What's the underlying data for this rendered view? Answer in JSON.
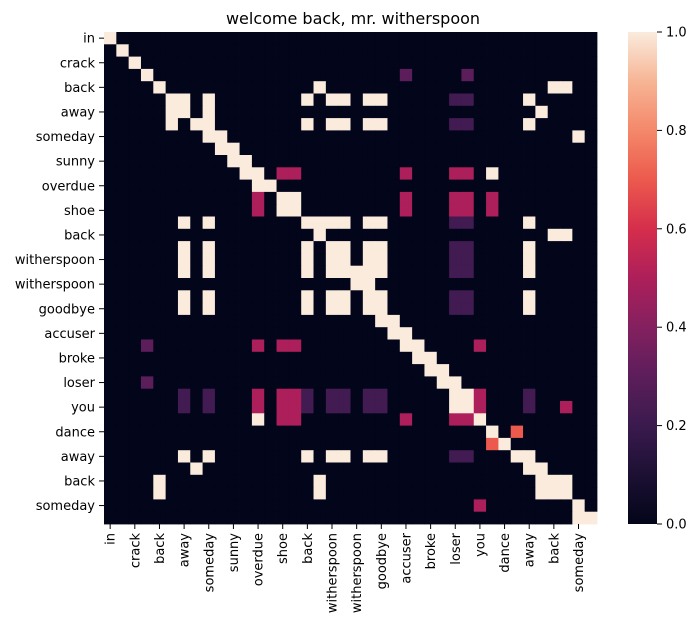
{
  "chart_data": {
    "type": "heatmap",
    "title": "welcome back, mr. witherspoon",
    "xlabel": "",
    "ylabel": "",
    "tokens": [
      "in",
      "",
      "crack",
      "",
      "back",
      "",
      "away",
      "",
      "someday",
      "",
      "sunny",
      "",
      "overdue",
      "",
      "shoe",
      "",
      "back",
      "",
      "witherspoon",
      "",
      "witherspoon",
      "",
      "goodbye",
      "",
      "accuser",
      "",
      "broke",
      "",
      "loser",
      "",
      "you",
      "",
      "dance",
      "",
      "away",
      "",
      "back",
      "",
      "someday",
      ""
    ],
    "colorbar": {
      "min": 0.0,
      "max": 1.0,
      "ticks": [
        "0.0",
        "0.2",
        "0.4",
        "0.6",
        "0.8",
        "1.0"
      ],
      "colormap": "rocket"
    },
    "matrix": [
      [
        1,
        0,
        0,
        0,
        0,
        0,
        0,
        0,
        0,
        0,
        0,
        0,
        0,
        0,
        0,
        0,
        0,
        0,
        0,
        0,
        0,
        0,
        0,
        0,
        0,
        0,
        0,
        0,
        0,
        0,
        0,
        0,
        0,
        0,
        0,
        0,
        0,
        0,
        0,
        0
      ],
      [
        0,
        1,
        0,
        0,
        0,
        0,
        0,
        0,
        0,
        0,
        0,
        0,
        0,
        0,
        0,
        0,
        0,
        0,
        0,
        0,
        0,
        0,
        0,
        0,
        0,
        0,
        0,
        0,
        0,
        0,
        0,
        0,
        0,
        0,
        0,
        0,
        0,
        0,
        0,
        0
      ],
      [
        0,
        0,
        1,
        0,
        0,
        0,
        0,
        0,
        0,
        0,
        0,
        0,
        0,
        0,
        0,
        0,
        0,
        0,
        0,
        0,
        0,
        0,
        0,
        0,
        0,
        0,
        0,
        0,
        0,
        0,
        0,
        0,
        0,
        0,
        0,
        0,
        0,
        0,
        0,
        0
      ],
      [
        0,
        0,
        0,
        1,
        0,
        0,
        0,
        0,
        0,
        0,
        0,
        0,
        0,
        0,
        0,
        0,
        0,
        0,
        0,
        0,
        0,
        0,
        0,
        0,
        0.3,
        0,
        0,
        0,
        0,
        0.3,
        0,
        0,
        0,
        0,
        0,
        0,
        0,
        0,
        0,
        0
      ],
      [
        0,
        0,
        0,
        0,
        1,
        0,
        0,
        0,
        0,
        0,
        0,
        0,
        0,
        0,
        0,
        0,
        0,
        1,
        0,
        0,
        0,
        0,
        0,
        0,
        0,
        0,
        0,
        0,
        0,
        0,
        0,
        0,
        0,
        0,
        0,
        0,
        1,
        1,
        0,
        0
      ],
      [
        0,
        0,
        0,
        0,
        0,
        1,
        1,
        0,
        1,
        0,
        0,
        0,
        0,
        0,
        0,
        0,
        1,
        0,
        1,
        1,
        0,
        1,
        1,
        0,
        0,
        0,
        0,
        0,
        0.22,
        0.22,
        0,
        0,
        0,
        0,
        1,
        0,
        0,
        0,
        0,
        0
      ],
      [
        0,
        0,
        0,
        0,
        0,
        1,
        1,
        0,
        1,
        0,
        0,
        0,
        0,
        0,
        0,
        0,
        0,
        0,
        0,
        0,
        0,
        0,
        0,
        0,
        0,
        0,
        0,
        0,
        0,
        0,
        0,
        0,
        0,
        0,
        0,
        1,
        0,
        0,
        0,
        0
      ],
      [
        0,
        0,
        0,
        0,
        0,
        1,
        0,
        1,
        1,
        0,
        0,
        0,
        0,
        0,
        0,
        0,
        1,
        0,
        1,
        1,
        0,
        1,
        1,
        0,
        0,
        0,
        0,
        0,
        0.22,
        0.22,
        0,
        0,
        0,
        0,
        1,
        0,
        0,
        0,
        0,
        0
      ],
      [
        0,
        0,
        0,
        0,
        0,
        0,
        0,
        0,
        1,
        1,
        0,
        0,
        0,
        0,
        0,
        0,
        0,
        0,
        0,
        0,
        0,
        0,
        0,
        0,
        0,
        0,
        0,
        0,
        0,
        0,
        0,
        0,
        0,
        0,
        0,
        0,
        0,
        0,
        1,
        0
      ],
      [
        0,
        0,
        0,
        0,
        0,
        0,
        0,
        0,
        0,
        1,
        1,
        0,
        0,
        0,
        0,
        0,
        0,
        0,
        0,
        0,
        0,
        0,
        0,
        0,
        0,
        0,
        0,
        0,
        0,
        0,
        0,
        0,
        0,
        0,
        0,
        0,
        0,
        0,
        0,
        0
      ],
      [
        0,
        0,
        0,
        0,
        0,
        0,
        0,
        0,
        0,
        0,
        1,
        1,
        0,
        0,
        0,
        0,
        0,
        0,
        0,
        0,
        0,
        0,
        0,
        0,
        0,
        0,
        0,
        0,
        0,
        0,
        0,
        0,
        0,
        0,
        0,
        0,
        0,
        0,
        0,
        0
      ],
      [
        0,
        0,
        0,
        0,
        0,
        0,
        0,
        0,
        0,
        0,
        0,
        1,
        1,
        0,
        0.5,
        0.5,
        0,
        0,
        0,
        0,
        0,
        0,
        0,
        0,
        0.5,
        0,
        0,
        0,
        0.5,
        0.5,
        0,
        1,
        0,
        0,
        0,
        0,
        0,
        0,
        0,
        0
      ],
      [
        0,
        0,
        0,
        0,
        0,
        0,
        0,
        0,
        0,
        0,
        0,
        0,
        1,
        1,
        0,
        0,
        0,
        0,
        0,
        0,
        0,
        0,
        0,
        0,
        0,
        0,
        0,
        0,
        0,
        0,
        0,
        0,
        0,
        0,
        0,
        0,
        0,
        0,
        0,
        0
      ],
      [
        0,
        0,
        0,
        0,
        0,
        0,
        0,
        0,
        0,
        0,
        0,
        0,
        0.5,
        0,
        1,
        1,
        0,
        0,
        0,
        0,
        0,
        0,
        0,
        0,
        0.5,
        0,
        0,
        0,
        0.5,
        0.5,
        0,
        0.5,
        0,
        0,
        0,
        0,
        0,
        0,
        0,
        0
      ],
      [
        0,
        0,
        0,
        0,
        0,
        0,
        0,
        0,
        0,
        0,
        0,
        0,
        0.5,
        0,
        1,
        1,
        0,
        0,
        0,
        0,
        0,
        0,
        0,
        0,
        0.5,
        0,
        0,
        0,
        0.5,
        0.5,
        0,
        0.5,
        0,
        0,
        0,
        0,
        0,
        0,
        0,
        0
      ],
      [
        0,
        0,
        0,
        0,
        0,
        0,
        1,
        0,
        1,
        0,
        0,
        0,
        0,
        0,
        0,
        0,
        1,
        1,
        1,
        1,
        0,
        1,
        1,
        0,
        0,
        0,
        0,
        0,
        0.22,
        0.22,
        0,
        0,
        0,
        0,
        1,
        0,
        0,
        0,
        0,
        0
      ],
      [
        0,
        0,
        0,
        0,
        0,
        0,
        0,
        0,
        0,
        0,
        0,
        0,
        0,
        0,
        0,
        0,
        0,
        1,
        0,
        0,
        0,
        0,
        0,
        0,
        0,
        0,
        0,
        0,
        0,
        0,
        0,
        0,
        0,
        0,
        0,
        0,
        1,
        1,
        0,
        0
      ],
      [
        0,
        0,
        0,
        0,
        0,
        0,
        1,
        0,
        1,
        0,
        0,
        0,
        0,
        0,
        0,
        0,
        1,
        0,
        1,
        1,
        0,
        1,
        1,
        0,
        0,
        0,
        0,
        0,
        0.22,
        0.22,
        0,
        0,
        0,
        0,
        1,
        0,
        0,
        0,
        0,
        0
      ],
      [
        0,
        0,
        0,
        0,
        0,
        0,
        1,
        0,
        1,
        0,
        0,
        0,
        0,
        0,
        0,
        0,
        1,
        0,
        1,
        1,
        0,
        1,
        1,
        0,
        0,
        0,
        0,
        0,
        0.22,
        0.22,
        0,
        0,
        0,
        0,
        1,
        0,
        0,
        0,
        0,
        0
      ],
      [
        0,
        0,
        0,
        0,
        0,
        0,
        1,
        0,
        1,
        0,
        0,
        0,
        0,
        0,
        0,
        0,
        1,
        0,
        1,
        1,
        1,
        1,
        1,
        0,
        0,
        0,
        0,
        0,
        0.22,
        0.22,
        0,
        0,
        0,
        0,
        1,
        0,
        0,
        0,
        0,
        0
      ],
      [
        0,
        0,
        0,
        0,
        0,
        0,
        0,
        0,
        0,
        0,
        0,
        0,
        0,
        0,
        0,
        0,
        0,
        0,
        0,
        0,
        1,
        1,
        0,
        0,
        0,
        0,
        0,
        0,
        0,
        0,
        0,
        0,
        0,
        0,
        0,
        0,
        0,
        0,
        0,
        0
      ],
      [
        0,
        0,
        0,
        0,
        0,
        0,
        1,
        0,
        1,
        0,
        0,
        0,
        0,
        0,
        0,
        0,
        1,
        0,
        1,
        1,
        0,
        1,
        1,
        0,
        0,
        0,
        0,
        0,
        0.22,
        0.22,
        0,
        0,
        0,
        0,
        1,
        0,
        0,
        0,
        0,
        0
      ],
      [
        0,
        0,
        0,
        0,
        0,
        0,
        1,
        0,
        1,
        0,
        0,
        0,
        0,
        0,
        0,
        0,
        1,
        0,
        1,
        1,
        0,
        1,
        1,
        0,
        0,
        0,
        0,
        0,
        0.22,
        0.22,
        0,
        0,
        0,
        0,
        1,
        0,
        0,
        0,
        0,
        0
      ],
      [
        0,
        0,
        0,
        0,
        0,
        0,
        0,
        0,
        0,
        0,
        0,
        0,
        0,
        0,
        0,
        0,
        0,
        0,
        0,
        0,
        0,
        0,
        1,
        1,
        0,
        0,
        0,
        0,
        0,
        0,
        0,
        0,
        0,
        0,
        0,
        0,
        0,
        0,
        0,
        0
      ],
      [
        0,
        0,
        0,
        0,
        0,
        0,
        0,
        0,
        0,
        0,
        0,
        0,
        0,
        0,
        0,
        0,
        0,
        0,
        0,
        0,
        0,
        0,
        0,
        1,
        1,
        0,
        0,
        0,
        0,
        0,
        0,
        0,
        0,
        0,
        0,
        0,
        0,
        0,
        0,
        0
      ],
      [
        0,
        0,
        0,
        0.3,
        0,
        0,
        0,
        0,
        0,
        0,
        0,
        0,
        0.5,
        0,
        0.5,
        0.5,
        0,
        0,
        0,
        0,
        0,
        0,
        0,
        0,
        1,
        1,
        0,
        0,
        0,
        0,
        0.5,
        0,
        0,
        0,
        0,
        0,
        0,
        0,
        0,
        0
      ],
      [
        0,
        0,
        0,
        0,
        0,
        0,
        0,
        0,
        0,
        0,
        0,
        0,
        0,
        0,
        0,
        0,
        0,
        0,
        0,
        0,
        0,
        0,
        0,
        0,
        0,
        1,
        1,
        0,
        0,
        0,
        0,
        0,
        0,
        0,
        0,
        0,
        0,
        0,
        0,
        0
      ],
      [
        0,
        0,
        0,
        0,
        0,
        0,
        0,
        0,
        0,
        0,
        0,
        0,
        0,
        0,
        0,
        0,
        0,
        0,
        0,
        0,
        0,
        0,
        0,
        0,
        0,
        0,
        1,
        1,
        0,
        0,
        0,
        0,
        0,
        0,
        0,
        0,
        0,
        0,
        0,
        0
      ],
      [
        0,
        0,
        0,
        0.3,
        0,
        0,
        0,
        0,
        0,
        0,
        0,
        0,
        0,
        0,
        0,
        0,
        0,
        0,
        0,
        0,
        0,
        0,
        0,
        0,
        0,
        0,
        0,
        1,
        1,
        0,
        0,
        0,
        0,
        0,
        0,
        0,
        0,
        0,
        0,
        0
      ],
      [
        0,
        0,
        0,
        0,
        0,
        0,
        0.22,
        0,
        0.22,
        0,
        0,
        0,
        0.5,
        0,
        0.5,
        0.5,
        0.22,
        0,
        0.22,
        0.22,
        0,
        0.22,
        0.22,
        0,
        0,
        0,
        0,
        0,
        1,
        1,
        0.5,
        0,
        0,
        0,
        0.22,
        0,
        0,
        0,
        0,
        0
      ],
      [
        0,
        0,
        0,
        0,
        0,
        0,
        0.22,
        0,
        0.22,
        0,
        0,
        0,
        0.5,
        0,
        0.5,
        0.5,
        0.22,
        0,
        0.22,
        0.22,
        0,
        0.22,
        0.22,
        0,
        0,
        0,
        0,
        0,
        1,
        1,
        0.5,
        0,
        0,
        0,
        0.22,
        0,
        0,
        0.5,
        0,
        0
      ],
      [
        0,
        0,
        0,
        0,
        0,
        0,
        0,
        0,
        0,
        0,
        0,
        0,
        1,
        0,
        0.5,
        0.5,
        0,
        0,
        0,
        0,
        0,
        0,
        0,
        0,
        0.5,
        0,
        0,
        0,
        0.5,
        0.5,
        1,
        0,
        0,
        0,
        0,
        0,
        0,
        0,
        0,
        0
      ],
      [
        0,
        0,
        0,
        0,
        0,
        0,
        0,
        0,
        0,
        0,
        0,
        0,
        0,
        0,
        0,
        0,
        0,
        0,
        0,
        0,
        0,
        0,
        0,
        0,
        0,
        0,
        0,
        0,
        0,
        0,
        0,
        1,
        0,
        0.7,
        0,
        0,
        0,
        0,
        0,
        0
      ],
      [
        0,
        0,
        0,
        0,
        0,
        0,
        0,
        0,
        0,
        0,
        0,
        0,
        0,
        0,
        0,
        0,
        0,
        0,
        0,
        0,
        0,
        0,
        0,
        0,
        0,
        0,
        0,
        0,
        0,
        0,
        0,
        0.7,
        1,
        0,
        0,
        0,
        0,
        0,
        0,
        0
      ],
      [
        0,
        0,
        0,
        0,
        0,
        0,
        1,
        0,
        1,
        0,
        0,
        0,
        0,
        0,
        0,
        0,
        1,
        0,
        1,
        1,
        0,
        1,
        1,
        0,
        0,
        0,
        0,
        0,
        0.22,
        0.22,
        0,
        0,
        0,
        1,
        1,
        0,
        0,
        0,
        0,
        0
      ],
      [
        0,
        0,
        0,
        0,
        0,
        0,
        0,
        1,
        0,
        0,
        0,
        0,
        0,
        0,
        0,
        0,
        0,
        0,
        0,
        0,
        0,
        0,
        0,
        0,
        0,
        0,
        0,
        0,
        0,
        0,
        0,
        0,
        0,
        0,
        1,
        1,
        0,
        0,
        0,
        0
      ],
      [
        0,
        0,
        0,
        0,
        1,
        0,
        0,
        0,
        0,
        0,
        0,
        0,
        0,
        0,
        0,
        0,
        0,
        1,
        0,
        0,
        0,
        0,
        0,
        0,
        0,
        0,
        0,
        0,
        0,
        0,
        0,
        0,
        0,
        0,
        0,
        1,
        1,
        1,
        0,
        0
      ],
      [
        0,
        0,
        0,
        0,
        1,
        0,
        0,
        0,
        0,
        0,
        0,
        0,
        0,
        0,
        0,
        0,
        0,
        1,
        0,
        0,
        0,
        0,
        0,
        0,
        0,
        0,
        0,
        0,
        0,
        0,
        0,
        0,
        0,
        0,
        0,
        1,
        1,
        1,
        0,
        0
      ],
      [
        0,
        0,
        0,
        0,
        0,
        0,
        0,
        0,
        0,
        0,
        0,
        0,
        0,
        0,
        0,
        0,
        0,
        0,
        0,
        0,
        0,
        0,
        0,
        0,
        0,
        0,
        0,
        0,
        0,
        0,
        0.5,
        0,
        0,
        0,
        0,
        0,
        0,
        0,
        1,
        0
      ],
      [
        0,
        0,
        0,
        0,
        0,
        0,
        0,
        0,
        0,
        0,
        0,
        0,
        0,
        0,
        0,
        0,
        0,
        0,
        0,
        0,
        0,
        0,
        0,
        0,
        0,
        0,
        0,
        0,
        0,
        0,
        0,
        0,
        0,
        0,
        0,
        0,
        0,
        0,
        1,
        1
      ]
    ]
  }
}
